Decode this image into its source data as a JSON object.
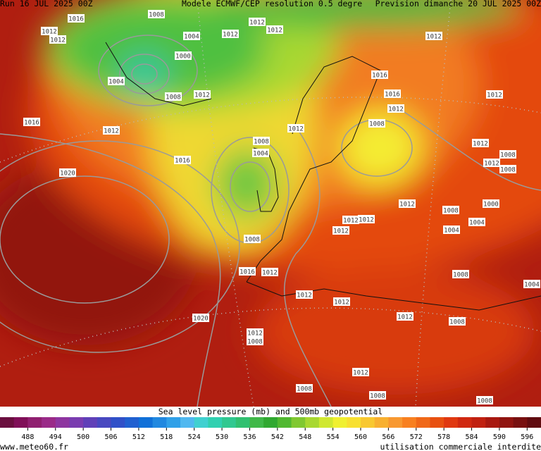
{
  "header": {
    "run": "Run 16 JUL 2025 00Z",
    "model": "Modele ECMWF/CEP resolution 0.5 degre",
    "forecast": "Prevision dimanche 20 JUL 2025 00Z"
  },
  "isobar_labels": [
    "1016",
    "1008",
    "1012",
    "1012",
    "1004",
    "1012",
    "1012",
    "1012",
    "1012",
    "1000",
    "1004",
    "1008",
    "1012",
    "1016",
    "1016",
    "1012",
    "1012",
    "1016",
    "1012",
    "1008",
    "1012",
    "1008",
    "1004",
    "1016",
    "1012",
    "1008",
    "1012",
    "1008",
    "1020",
    "1012",
    "1000",
    "1008",
    "1012",
    "1012",
    "1004",
    "1012",
    "1004",
    "1008",
    "1016",
    "1012",
    "1008",
    "1004",
    "1012",
    "1012",
    "1012",
    "1008",
    "1020",
    "1012",
    "1008",
    "1012",
    "1008",
    "1008",
    "1008"
  ],
  "legend": {
    "title": "Sea level pressure (mb) and 500mb geopotential",
    "range": [
      482,
      599
    ],
    "ticks": [
      488,
      494,
      500,
      506,
      512,
      518,
      524,
      530,
      536,
      542,
      548,
      554,
      560,
      566,
      572,
      578,
      584,
      590,
      596
    ],
    "colors": [
      "#6b0f3f",
      "#800f58",
      "#901f70",
      "#9a2a88",
      "#8e35a0",
      "#7a3cb0",
      "#6040b8",
      "#4848c0",
      "#3050c8",
      "#2060d0",
      "#1070d8",
      "#2088e0",
      "#30a0e8",
      "#50b8f0",
      "#40d0d0",
      "#30d0b0",
      "#30c890",
      "#30c070",
      "#40b848",
      "#30a830",
      "#50b830",
      "#80c830",
      "#a8d830",
      "#d0e830",
      "#f0f030",
      "#f8e030",
      "#f8c830",
      "#f8b030",
      "#f89830",
      "#f88020",
      "#f06818",
      "#e85010",
      "#e03810",
      "#d02810",
      "#c02010",
      "#a81810",
      "#901410",
      "#781010",
      "#600c10"
    ]
  },
  "footer": {
    "site": "www.meteo60.fr",
    "notice": "utilisation commerciale interdite"
  }
}
